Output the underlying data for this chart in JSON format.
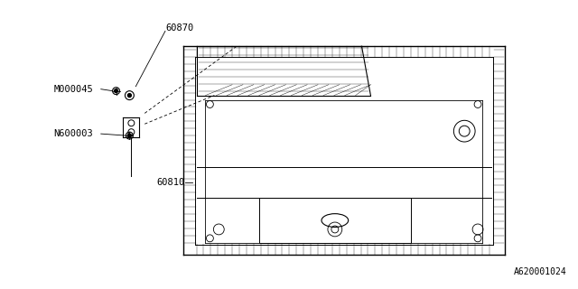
{
  "bg_color": "#ffffff",
  "line_color": "#000000",
  "text_color": "#000000",
  "part_number_60870": "60870",
  "part_number_60810": "60810",
  "part_number_M000045": "M000045",
  "part_number_N600003": "N600003",
  "diagram_id": "A620001024",
  "font_size_labels": 7.5,
  "font_size_diagram_id": 7.0
}
